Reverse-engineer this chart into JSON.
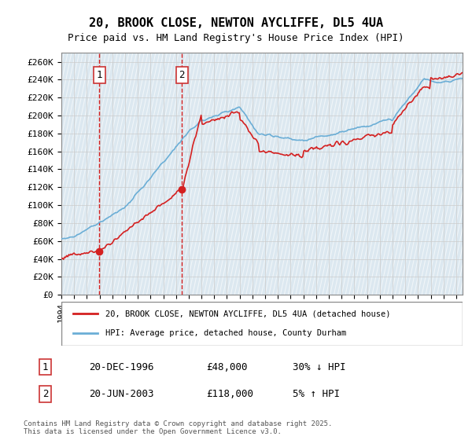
{
  "title": "20, BROOK CLOSE, NEWTON AYCLIFFE, DL5 4UA",
  "subtitle": "Price paid vs. HM Land Registry's House Price Index (HPI)",
  "ylabel_ticks": [
    "£0",
    "£20K",
    "£40K",
    "£60K",
    "£80K",
    "£100K",
    "£120K",
    "£140K",
    "£160K",
    "£180K",
    "£200K",
    "£220K",
    "£240K",
    "£260K"
  ],
  "ytick_vals": [
    0,
    20000,
    40000,
    60000,
    80000,
    100000,
    120000,
    140000,
    160000,
    180000,
    200000,
    220000,
    240000,
    260000
  ],
  "ylim": [
    0,
    270000
  ],
  "xmin": 1994.0,
  "xmax": 2025.5,
  "sale1_date": 1996.97,
  "sale1_price": 48000,
  "sale1_label": "1",
  "sale2_date": 2003.47,
  "sale2_price": 118000,
  "sale2_label": "2",
  "legend_line1": "20, BROOK CLOSE, NEWTON AYCLIFFE, DL5 4UA (detached house)",
  "legend_line2": "HPI: Average price, detached house, County Durham",
  "table_row1": [
    "1",
    "20-DEC-1996",
    "£48,000",
    "30% ↓ HPI"
  ],
  "table_row2": [
    "2",
    "20-JUN-2003",
    "£118,000",
    "5% ↑ HPI"
  ],
  "footnote": "Contains HM Land Registry data © Crown copyright and database right 2025.\nThis data is licensed under the Open Government Licence v3.0.",
  "color_red": "#d42020",
  "color_blue": "#6baed6",
  "color_hatch": "#c8d8e8",
  "color_grid": "#cccccc",
  "color_box_border": "#888888",
  "background_white": "#ffffff"
}
